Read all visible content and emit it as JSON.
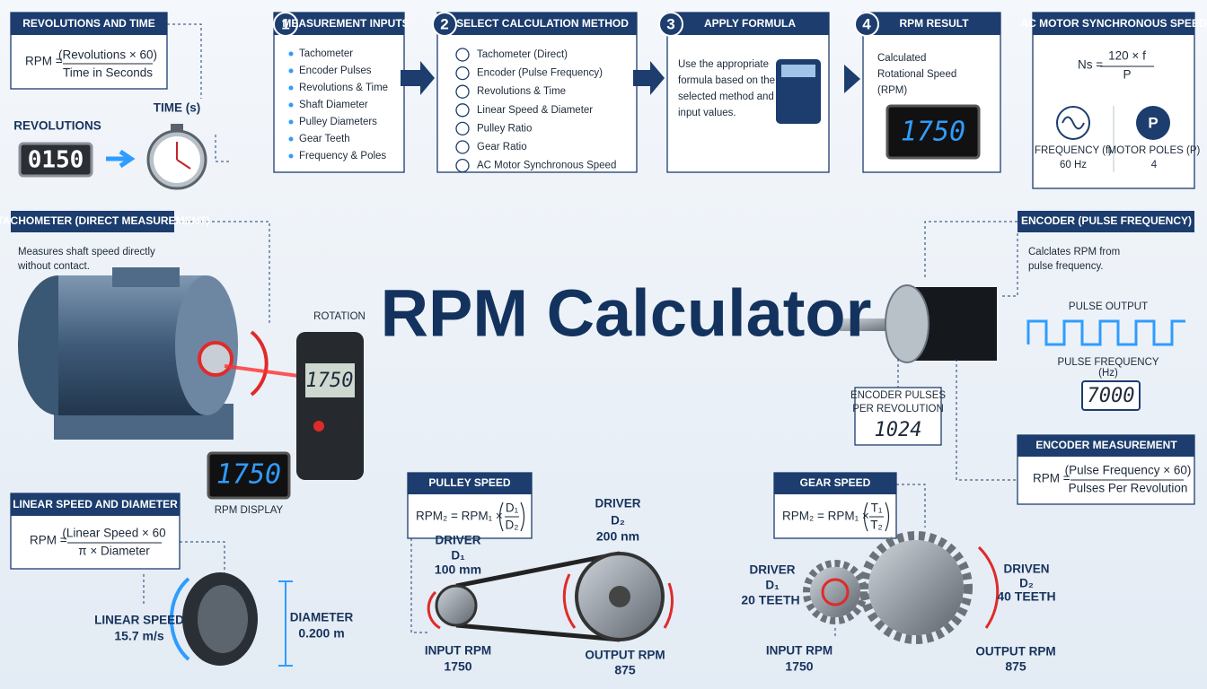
{
  "title": "RPM Calculator",
  "revolutions_time": {
    "title": "REVOLUTIONS AND TIME",
    "lhs": "RPM =",
    "numerator": "(Revolutions × 60)",
    "denominator": "Time in Seconds",
    "revolutions_label": "REVOLUTIONS",
    "counter": "0150",
    "time_label": "TIME (s)"
  },
  "steps": [
    {
      "number": 1,
      "title": "MEASUREMENT INPUTS",
      "items": [
        "Tachometer",
        "Encoder Pulses",
        "Revolutions & Time",
        "Shaft Diameter",
        "Pulley Diameters",
        "Gear Teeth",
        "Frequency & Poles"
      ]
    },
    {
      "number": 2,
      "title": "SELECT CALCULATION METHOD",
      "items": [
        "Tachometer (Direct)",
        "Encoder (Pulse Frequency)",
        "Revolutions & Time",
        "Linear Speed & Diameter",
        "Pulley Ratio",
        "Gear Ratio",
        "AC Motor Synchronous Speed"
      ]
    },
    {
      "number": 3,
      "title": "APPLY FORMULA",
      "lines": [
        "Use the appropriate",
        "formula based on the",
        "selected method and",
        "input values."
      ]
    },
    {
      "number": 4,
      "title": "RPM RESULT",
      "lines": [
        "Calculated",
        "Rotational Speed",
        "(RPM)"
      ],
      "display": 1750
    }
  ],
  "ac_motor": {
    "title": "AC MOTOR SYNCHRONOUS SPEED",
    "lhs": "Ns =",
    "numerator": "120 × f",
    "denominator": "P",
    "icon": "P",
    "frequency_label": "FREQUENCY (f)",
    "frequency": "60 Hz",
    "poles_label": "MOTOR POLES (P)",
    "poles": 4
  },
  "tachometer": {
    "title": "TACHOMETER (DIRECT MEASUREMENT)",
    "lines": [
      "Measures shaft speed directly",
      "without contact."
    ],
    "rotation_label": "ROTATION",
    "device_display": 1750,
    "rpm_display": 1750,
    "rpm_display_label": "RPM DISPLAY"
  },
  "encoder": {
    "title": "ENCODER (PULSE FREQUENCY)",
    "lines": [
      "Calclates RPM from",
      "pulse frequency."
    ],
    "pulse_output_label": "PULSE OUTPUT",
    "pulse_frequency_label": "PULSE FREQUENCY",
    "pulse_frequency_unit": "(Hz)",
    "pulse_frequency": 7000,
    "ppr_label": [
      "ENCODER PULSES",
      "PER REVOLUTION"
    ],
    "ppr": 1024
  },
  "encoder_measurement": {
    "title": "ENCODER MEASUREMENT",
    "lhs": "RPM =",
    "numerator": "(Pulse Frequency × 60)",
    "denominator": "Pulses Per Revolution"
  },
  "linear": {
    "title": "LINEAR SPEED AND DIAMETER",
    "lhs": "RPM =",
    "numerator": "(Linear Speed × 60",
    "denominator": "π × Diameter",
    "speed_label": "LINEAR SPEED",
    "speed": "15.7 m/s",
    "diameter_label": "DIAMETER",
    "diameter": "0.200 m"
  },
  "pulley": {
    "title": "PULLEY SPEED",
    "lhs": "RPM₂ = RPM₁ ×",
    "numerator": "D₁",
    "denominator": "D₂",
    "driver_label": "DRIVER",
    "driver_symbol": "D₁",
    "driver_size": "100 mm",
    "driven_label": "DRIVER",
    "driven_symbol": "D₂",
    "driven_size": "200 nm",
    "input_label": "INPUT RPM",
    "input_rpm": 1750,
    "output_label": "OUTPUT RPM",
    "output_rpm": 875
  },
  "gear": {
    "title": "GEAR SPEED",
    "lhs": "RPM₂ = RPM₁ ×",
    "numerator": "T₁",
    "denominator": "T₂",
    "driver_label": "DRIVER",
    "driver_symbol": "D₁",
    "driver_size": "20 TEETH",
    "driven_label": "DRIVEN",
    "driven_symbol": "D₂",
    "driven_size": "40 TEETH",
    "input_label": "INPUT RPM",
    "input_rpm": 1750,
    "output_label": "OUTPUT RPM",
    "output_rpm": 875
  }
}
